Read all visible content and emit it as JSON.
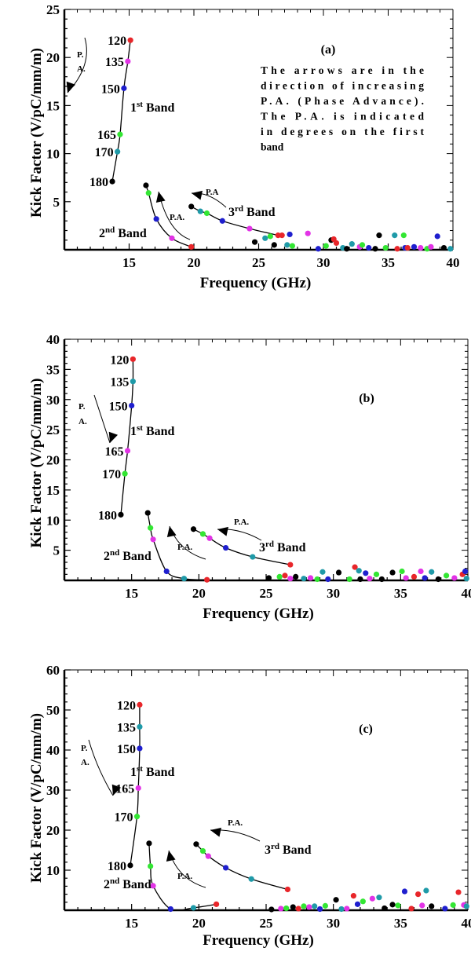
{
  "colors": {
    "red": "#e8262a",
    "magenta": "#e233e6",
    "blue": "#1f1fce",
    "green": "#33e633",
    "black": "#000000",
    "teal": "#1f9aa8"
  },
  "chart_data": [
    {
      "type": "scatter",
      "panel_label": "(a)",
      "xlabel": "Frequency (GHz)",
      "ylabel": "Kick Factor (V/pC/mm/m)",
      "xlim": [
        10,
        40
      ],
      "ylim": [
        0,
        25
      ],
      "xticks": [
        "15",
        "20",
        "25",
        "30",
        "35",
        "40"
      ],
      "yticks": [
        "5",
        "10",
        "15",
        "20",
        "25"
      ],
      "note_lines": [
        "The arrows are in the",
        "direction of increasing",
        "P.A. (Phase Advance).",
        "The P.A. is indicated",
        "in degrees on the first",
        "band"
      ],
      "arrow_text": {
        "band1": [
          "P.",
          "A."
        ],
        "band2": "P.A.",
        "band3": "P.A"
      },
      "band_labels": {
        "band1": [
          "1",
          "st",
          " Band"
        ],
        "band2": [
          "2",
          "nd",
          " Band"
        ],
        "band3": [
          "3",
          "rd",
          " Band"
        ]
      },
      "pa_labels": [
        {
          "text": "120",
          "x": 15.1,
          "y": 21.8
        },
        {
          "text": "135",
          "x": 14.9,
          "y": 19.6
        },
        {
          "text": "150",
          "x": 14.6,
          "y": 16.8
        },
        {
          "text": "165",
          "x": 14.3,
          "y": 12.0
        },
        {
          "text": "170",
          "x": 14.1,
          "y": 10.2
        },
        {
          "text": "180",
          "x": 13.7,
          "y": 7.1
        }
      ],
      "bands": [
        {
          "name": "1st Band",
          "x": [
            15.1,
            14.9,
            14.6,
            14.3,
            14.1,
            13.7
          ],
          "y": [
            21.8,
            19.6,
            16.8,
            12.0,
            10.2,
            7.1
          ],
          "colors": [
            "red",
            "magenta",
            "blue",
            "green",
            "teal",
            "black"
          ]
        },
        {
          "name": "2nd Band",
          "x": [
            16.3,
            16.5,
            17.1,
            18.3,
            19.8
          ],
          "y": [
            6.7,
            5.9,
            3.2,
            1.2,
            0.3
          ],
          "colors": [
            "black",
            "green",
            "blue",
            "magenta",
            "red"
          ]
        },
        {
          "name": "3rd Band",
          "x": [
            19.8,
            20.5,
            21.0,
            22.2,
            24.3,
            26.5
          ],
          "y": [
            4.5,
            4.0,
            3.8,
            3.0,
            2.2,
            1.5
          ],
          "colors": [
            "black",
            "teal",
            "green",
            "blue",
            "magenta",
            "red"
          ]
        }
      ],
      "scatter": [
        {
          "x": 24.7,
          "y": 0.8,
          "c": "black"
        },
        {
          "x": 25.5,
          "y": 1.2,
          "c": "teal"
        },
        {
          "x": 25.9,
          "y": 1.4,
          "c": "green"
        },
        {
          "x": 26.2,
          "y": 0.5,
          "c": "black"
        },
        {
          "x": 26.8,
          "y": 1.5,
          "c": "red"
        },
        {
          "x": 27.2,
          "y": 0.5,
          "c": "teal"
        },
        {
          "x": 27.4,
          "y": 1.6,
          "c": "blue"
        },
        {
          "x": 27.6,
          "y": 0.4,
          "c": "green"
        },
        {
          "x": 28.8,
          "y": 1.7,
          "c": "magenta"
        },
        {
          "x": 29.6,
          "y": 0.1,
          "c": "blue"
        },
        {
          "x": 30.2,
          "y": 0.4,
          "c": "green"
        },
        {
          "x": 30.6,
          "y": 1.0,
          "c": "black"
        },
        {
          "x": 30.8,
          "y": 1.1,
          "c": "red"
        },
        {
          "x": 31.0,
          "y": 0.7,
          "c": "red"
        },
        {
          "x": 31.5,
          "y": 0.2,
          "c": "teal"
        },
        {
          "x": 31.8,
          "y": 0.1,
          "c": "black"
        },
        {
          "x": 32.2,
          "y": 0.6,
          "c": "teal"
        },
        {
          "x": 32.8,
          "y": 0.3,
          "c": "magenta"
        },
        {
          "x": 33.0,
          "y": 0.5,
          "c": "green"
        },
        {
          "x": 33.5,
          "y": 0.2,
          "c": "blue"
        },
        {
          "x": 34.0,
          "y": 0.1,
          "c": "black"
        },
        {
          "x": 34.3,
          "y": 1.5,
          "c": "black"
        },
        {
          "x": 34.8,
          "y": 0.2,
          "c": "green"
        },
        {
          "x": 35.5,
          "y": 1.5,
          "c": "teal"
        },
        {
          "x": 35.7,
          "y": 0.1,
          "c": "red"
        },
        {
          "x": 36.2,
          "y": 1.5,
          "c": "green"
        },
        {
          "x": 36.3,
          "y": 0.2,
          "c": "blue"
        },
        {
          "x": 37.0,
          "y": 0.3,
          "c": "blue"
        },
        {
          "x": 37.5,
          "y": 0.2,
          "c": "magenta"
        },
        {
          "x": 38.0,
          "y": 0.1,
          "c": "green"
        },
        {
          "x": 38.8,
          "y": 1.4,
          "c": "blue"
        },
        {
          "x": 39.3,
          "y": 0.2,
          "c": "black"
        },
        {
          "x": 39.8,
          "y": 0.1,
          "c": "teal"
        },
        {
          "x": 36.5,
          "y": 0.2,
          "c": "red"
        },
        {
          "x": 38.3,
          "y": 0.3,
          "c": "magenta"
        }
      ]
    },
    {
      "type": "scatter",
      "panel_label": "(b)",
      "xlabel": "Frequency (GHz)",
      "ylabel": "Kick Factor (V/pC/mm/m)",
      "xlim": [
        10,
        40
      ],
      "ylim": [
        0,
        40
      ],
      "xticks": [
        "15",
        "20",
        "25",
        "30",
        "35",
        "40"
      ],
      "yticks": [
        "5",
        "10",
        "15",
        "20",
        "25",
        "30",
        "35",
        "40"
      ],
      "arrow_text": {
        "band1": [
          "P.",
          "A."
        ],
        "band2": "P.A.",
        "band3": "P.A."
      },
      "band_labels": {
        "band1": [
          "1",
          "st",
          " Band"
        ],
        "band2": [
          "2",
          "nd",
          " Band"
        ],
        "band3": [
          "3",
          "rd",
          " Band"
        ]
      },
      "pa_labels": [
        {
          "text": "120",
          "x": 15.1,
          "y": 36.7
        },
        {
          "text": "135",
          "x": 15.1,
          "y": 33.0
        },
        {
          "text": "150",
          "x": 15.0,
          "y": 29.0
        },
        {
          "text": "165",
          "x": 14.7,
          "y": 21.5
        },
        {
          "text": "170",
          "x": 14.5,
          "y": 17.7
        },
        {
          "text": "180",
          "x": 14.2,
          "y": 10.9
        }
      ],
      "bands": [
        {
          "name": "1st Band",
          "x": [
            15.1,
            15.1,
            15.0,
            14.7,
            14.5,
            14.2
          ],
          "y": [
            36.7,
            33.0,
            29.0,
            21.5,
            17.7,
            10.9
          ],
          "colors": [
            "red",
            "teal",
            "blue",
            "magenta",
            "green",
            "black"
          ]
        },
        {
          "name": "2nd Band",
          "x": [
            16.2,
            16.4,
            16.6,
            17.6,
            18.9,
            20.6
          ],
          "y": [
            11.2,
            8.7,
            6.8,
            1.5,
            0.3,
            0.1
          ],
          "colors": [
            "black",
            "green",
            "magenta",
            "blue",
            "teal",
            "red"
          ]
        },
        {
          "name": "3rd Band",
          "x": [
            19.6,
            20.3,
            20.8,
            22.0,
            24.0,
            26.8
          ],
          "y": [
            8.5,
            7.7,
            7.0,
            5.4,
            3.9,
            2.6
          ],
          "colors": [
            "black",
            "green",
            "magenta",
            "blue",
            "teal",
            "red"
          ]
        }
      ],
      "scatter": [
        {
          "x": 25.2,
          "y": 0.4,
          "c": "black"
        },
        {
          "x": 26.0,
          "y": 0.6,
          "c": "green"
        },
        {
          "x": 26.4,
          "y": 0.8,
          "c": "red"
        },
        {
          "x": 26.8,
          "y": 0.3,
          "c": "magenta"
        },
        {
          "x": 27.2,
          "y": 0.6,
          "c": "black"
        },
        {
          "x": 27.8,
          "y": 0.3,
          "c": "teal"
        },
        {
          "x": 28.3,
          "y": 0.4,
          "c": "magenta"
        },
        {
          "x": 28.8,
          "y": 0.2,
          "c": "green"
        },
        {
          "x": 29.2,
          "y": 1.4,
          "c": "teal"
        },
        {
          "x": 29.6,
          "y": 0.2,
          "c": "blue"
        },
        {
          "x": 30.4,
          "y": 1.3,
          "c": "black"
        },
        {
          "x": 31.2,
          "y": 0.2,
          "c": "green"
        },
        {
          "x": 31.6,
          "y": 2.2,
          "c": "red"
        },
        {
          "x": 31.9,
          "y": 1.6,
          "c": "teal"
        },
        {
          "x": 32.4,
          "y": 1.2,
          "c": "blue"
        },
        {
          "x": 32.7,
          "y": 0.3,
          "c": "magenta"
        },
        {
          "x": 33.2,
          "y": 1.0,
          "c": "green"
        },
        {
          "x": 33.6,
          "y": 0.2,
          "c": "black"
        },
        {
          "x": 34.4,
          "y": 1.3,
          "c": "black"
        },
        {
          "x": 35.1,
          "y": 1.5,
          "c": "green"
        },
        {
          "x": 35.4,
          "y": 0.4,
          "c": "magenta"
        },
        {
          "x": 36.0,
          "y": 0.6,
          "c": "red"
        },
        {
          "x": 36.5,
          "y": 1.5,
          "c": "magenta"
        },
        {
          "x": 36.8,
          "y": 0.4,
          "c": "blue"
        },
        {
          "x": 37.3,
          "y": 1.4,
          "c": "teal"
        },
        {
          "x": 37.8,
          "y": 0.2,
          "c": "black"
        },
        {
          "x": 38.4,
          "y": 0.8,
          "c": "green"
        },
        {
          "x": 39.0,
          "y": 0.4,
          "c": "magenta"
        },
        {
          "x": 39.6,
          "y": 1.0,
          "c": "red"
        },
        {
          "x": 39.8,
          "y": 1.5,
          "c": "blue"
        },
        {
          "x": 39.9,
          "y": 0.3,
          "c": "teal"
        },
        {
          "x": 32.0,
          "y": 0.2,
          "c": "black"
        }
      ]
    },
    {
      "type": "scatter",
      "panel_label": "(c)",
      "xlabel": "Frequency (GHz)",
      "ylabel": "Kick Factor (V/pC/mm/m)",
      "xlim": [
        10,
        40
      ],
      "ylim": [
        0,
        60
      ],
      "xticks": [
        "15",
        "20",
        "25",
        "30",
        "35",
        "40"
      ],
      "yticks": [
        "10",
        "20",
        "30",
        "40",
        "50",
        "60"
      ],
      "arrow_text": {
        "band1": [
          "P.",
          "A."
        ],
        "band2": "P.A.",
        "band3": "P.A."
      },
      "band_labels": {
        "band1": [
          "1",
          "st",
          " Band"
        ],
        "band2": [
          "2",
          "nd",
          " Band"
        ],
        "band3": [
          "3",
          "rd",
          " Band"
        ]
      },
      "pa_labels": [
        {
          "text": "120",
          "x": 15.6,
          "y": 51.3
        },
        {
          "text": "135",
          "x": 15.6,
          "y": 45.8
        },
        {
          "text": "150",
          "x": 15.6,
          "y": 40.4
        },
        {
          "text": "165",
          "x": 15.5,
          "y": 30.5
        },
        {
          "text": "170",
          "x": 15.4,
          "y": 23.4
        },
        {
          "text": "180",
          "x": 14.9,
          "y": 11.2
        }
      ],
      "bands": [
        {
          "name": "1st Band",
          "x": [
            15.6,
            15.6,
            15.6,
            15.5,
            15.4,
            14.9
          ],
          "y": [
            51.3,
            45.8,
            40.4,
            30.5,
            23.4,
            11.2
          ],
          "colors": [
            "red",
            "teal",
            "blue",
            "magenta",
            "green",
            "black"
          ]
        },
        {
          "name": "2nd Band",
          "x": [
            16.3,
            16.4,
            16.6,
            17.9,
            19.6,
            21.3
          ],
          "y": [
            16.7,
            11.0,
            6.1,
            0.3,
            0.6,
            1.5
          ],
          "colors": [
            "black",
            "green",
            "magenta",
            "blue",
            "teal",
            "red"
          ]
        },
        {
          "name": "3rd Band",
          "x": [
            19.8,
            20.3,
            20.7,
            22.0,
            23.9,
            26.6
          ],
          "y": [
            16.5,
            14.8,
            13.5,
            10.6,
            7.8,
            5.2
          ],
          "colors": [
            "black",
            "green",
            "magenta",
            "blue",
            "teal",
            "red"
          ]
        }
      ],
      "scatter": [
        {
          "x": 25.4,
          "y": 0.2,
          "c": "black"
        },
        {
          "x": 26.1,
          "y": 0.4,
          "c": "magenta"
        },
        {
          "x": 26.5,
          "y": 0.5,
          "c": "green"
        },
        {
          "x": 27.0,
          "y": 0.8,
          "c": "black"
        },
        {
          "x": 27.4,
          "y": 0.4,
          "c": "red"
        },
        {
          "x": 27.8,
          "y": 1.0,
          "c": "green"
        },
        {
          "x": 28.2,
          "y": 0.8,
          "c": "magenta"
        },
        {
          "x": 28.6,
          "y": 1.0,
          "c": "teal"
        },
        {
          "x": 29.0,
          "y": 0.3,
          "c": "blue"
        },
        {
          "x": 29.4,
          "y": 1.1,
          "c": "green"
        },
        {
          "x": 30.2,
          "y": 2.6,
          "c": "black"
        },
        {
          "x": 30.6,
          "y": 0.3,
          "c": "teal"
        },
        {
          "x": 31.0,
          "y": 0.4,
          "c": "magenta"
        },
        {
          "x": 31.5,
          "y": 3.6,
          "c": "red"
        },
        {
          "x": 31.8,
          "y": 1.5,
          "c": "blue"
        },
        {
          "x": 32.2,
          "y": 2.2,
          "c": "green"
        },
        {
          "x": 32.9,
          "y": 2.9,
          "c": "magenta"
        },
        {
          "x": 33.4,
          "y": 3.2,
          "c": "teal"
        },
        {
          "x": 33.8,
          "y": 0.5,
          "c": "black"
        },
        {
          "x": 34.4,
          "y": 1.4,
          "c": "black"
        },
        {
          "x": 34.8,
          "y": 1.2,
          "c": "green"
        },
        {
          "x": 35.3,
          "y": 4.7,
          "c": "blue"
        },
        {
          "x": 35.8,
          "y": 0.4,
          "c": "red"
        },
        {
          "x": 36.3,
          "y": 4.0,
          "c": "red"
        },
        {
          "x": 36.6,
          "y": 1.2,
          "c": "magenta"
        },
        {
          "x": 36.9,
          "y": 4.9,
          "c": "teal"
        },
        {
          "x": 37.3,
          "y": 1.0,
          "c": "black"
        },
        {
          "x": 38.3,
          "y": 0.4,
          "c": "blue"
        },
        {
          "x": 38.9,
          "y": 1.3,
          "c": "green"
        },
        {
          "x": 39.3,
          "y": 4.5,
          "c": "red"
        },
        {
          "x": 39.7,
          "y": 1.3,
          "c": "magenta"
        },
        {
          "x": 39.9,
          "y": 1.0,
          "c": "teal"
        }
      ]
    }
  ]
}
